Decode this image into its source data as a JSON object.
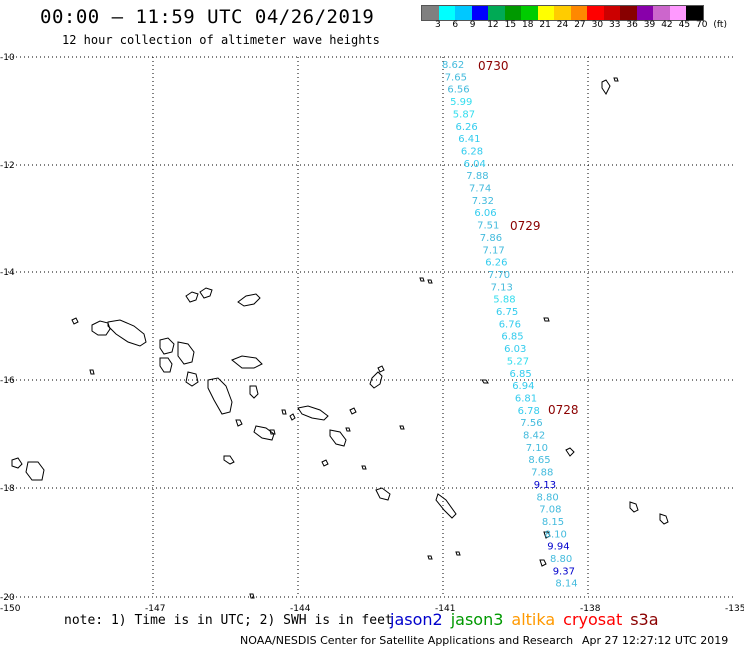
{
  "header": {
    "title": "00:00 — 11:59 UTC 04/26/2019",
    "subtitle": "12 hour collection of altimeter wave heights"
  },
  "colorbar": {
    "labels": [
      "3",
      "6",
      "9",
      "12",
      "15",
      "18",
      "21",
      "24",
      "27",
      "30",
      "33",
      "36",
      "39",
      "42",
      "45",
      "70",
      "(ft)"
    ],
    "colors": [
      "#808080",
      "#00ffff",
      "#00c8ff",
      "#0000ff",
      "#00aa55",
      "#009900",
      "#00cc00",
      "#ffff00",
      "#ffcc00",
      "#ff8800",
      "#ff0000",
      "#cc0000",
      "#880000",
      "#8800aa",
      "#cc66cc",
      "#ff99ff",
      "#000000"
    ]
  },
  "map": {
    "lon_ticks": [
      "-150",
      "-147",
      "-144",
      "-141",
      "-138",
      "-135"
    ],
    "lat_ticks": [
      "-10",
      "-12",
      "-14",
      "-16",
      "-18",
      "-20"
    ]
  },
  "track": {
    "time_labels": [
      "0730",
      "0729",
      "0728"
    ],
    "time_color": "#8b0000",
    "readings": [
      {
        "v": "8.62",
        "c": "#44bbdd"
      },
      {
        "v": "7.65",
        "c": "#44bbdd"
      },
      {
        "v": "6.56",
        "c": "#44bbdd"
      },
      {
        "v": "5.99",
        "c": "#33ddee"
      },
      {
        "v": "5.87",
        "c": "#33ddee"
      },
      {
        "v": "6.26",
        "c": "#33ccee"
      },
      {
        "v": "6.41",
        "c": "#33ccee"
      },
      {
        "v": "6.28",
        "c": "#33ccee"
      },
      {
        "v": "6.04",
        "c": "#33ccee"
      },
      {
        "v": "7.88",
        "c": "#44bbdd"
      },
      {
        "v": "7.74",
        "c": "#44bbdd"
      },
      {
        "v": "7.32",
        "c": "#44bbdd"
      },
      {
        "v": "6.06",
        "c": "#33ccee"
      },
      {
        "v": "7.51",
        "c": "#44bbdd"
      },
      {
        "v": "7.86",
        "c": "#44bbdd"
      },
      {
        "v": "7.17",
        "c": "#44bbdd"
      },
      {
        "v": "6.26",
        "c": "#33ccee"
      },
      {
        "v": "7.70",
        "c": "#44bbdd"
      },
      {
        "v": "7.13",
        "c": "#44bbdd"
      },
      {
        "v": "5.88",
        "c": "#33ddee"
      },
      {
        "v": "6.75",
        "c": "#33ccee"
      },
      {
        "v": "6.76",
        "c": "#33ccee"
      },
      {
        "v": "6.85",
        "c": "#33ccee"
      },
      {
        "v": "6.03",
        "c": "#33ccee"
      },
      {
        "v": "5.27",
        "c": "#33ddee"
      },
      {
        "v": "6.85",
        "c": "#33ccee"
      },
      {
        "v": "6.94",
        "c": "#33ccee"
      },
      {
        "v": "6.81",
        "c": "#33ccee"
      },
      {
        "v": "6.78",
        "c": "#33ccee"
      },
      {
        "v": "7.56",
        "c": "#44bbdd"
      },
      {
        "v": "8.42",
        "c": "#44bbdd"
      },
      {
        "v": "7.10",
        "c": "#44bbdd"
      },
      {
        "v": "8.65",
        "c": "#44bbdd"
      },
      {
        "v": "7.88",
        "c": "#44bbdd"
      },
      {
        "v": "9.13",
        "c": "#0000cc"
      },
      {
        "v": "8.80",
        "c": "#44bbdd"
      },
      {
        "v": "7.08",
        "c": "#44bbdd"
      },
      {
        "v": "8.15",
        "c": "#44bbdd"
      },
      {
        "v": "8.10",
        "c": "#44bbdd"
      },
      {
        "v": "9.94",
        "c": "#0000cc"
      },
      {
        "v": "8.80",
        "c": "#44bbdd"
      },
      {
        "v": "9.37",
        "c": "#0000cc"
      },
      {
        "v": "8.14",
        "c": "#44bbdd"
      }
    ]
  },
  "footer": {
    "note": "note: 1) Time is in UTC; 2) SWH is in feet",
    "credit": "NOAA/NESDIS Center for Satellite Applications and Research",
    "timestamp": "Apr 27 12:27:12 UTC 2019"
  },
  "legend": {
    "items": [
      {
        "label": "jason2",
        "color": "#0000cc"
      },
      {
        "label": "jason3",
        "color": "#009900"
      },
      {
        "label": "altika",
        "color": "#ff9900"
      },
      {
        "label": "cryosat",
        "color": "#ff0000"
      },
      {
        "label": "s3a",
        "color": "#8b0000"
      }
    ]
  }
}
